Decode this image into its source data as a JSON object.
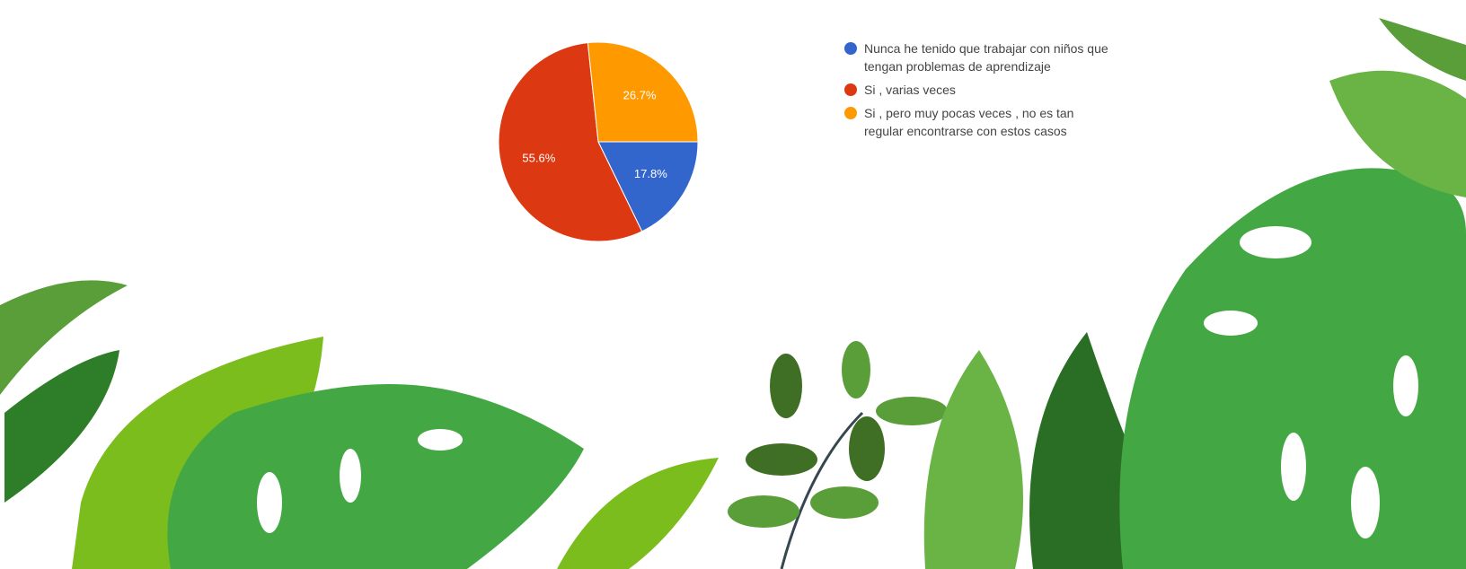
{
  "chart_data": {
    "type": "pie",
    "categories": [
      "Nunca he tenido que trabajar con niños que tengan problemas de aprendizaje",
      "Si , varias veces",
      "Si , pero muy pocas veces , no es tan regular encontrarse con estos casos"
    ],
    "values": [
      17.8,
      55.6,
      26.7
    ],
    "value_labels": [
      "17.8%",
      "55.6%",
      "26.7%"
    ],
    "colors": [
      "#3366cc",
      "#dc3912",
      "#ff9900"
    ]
  }
}
